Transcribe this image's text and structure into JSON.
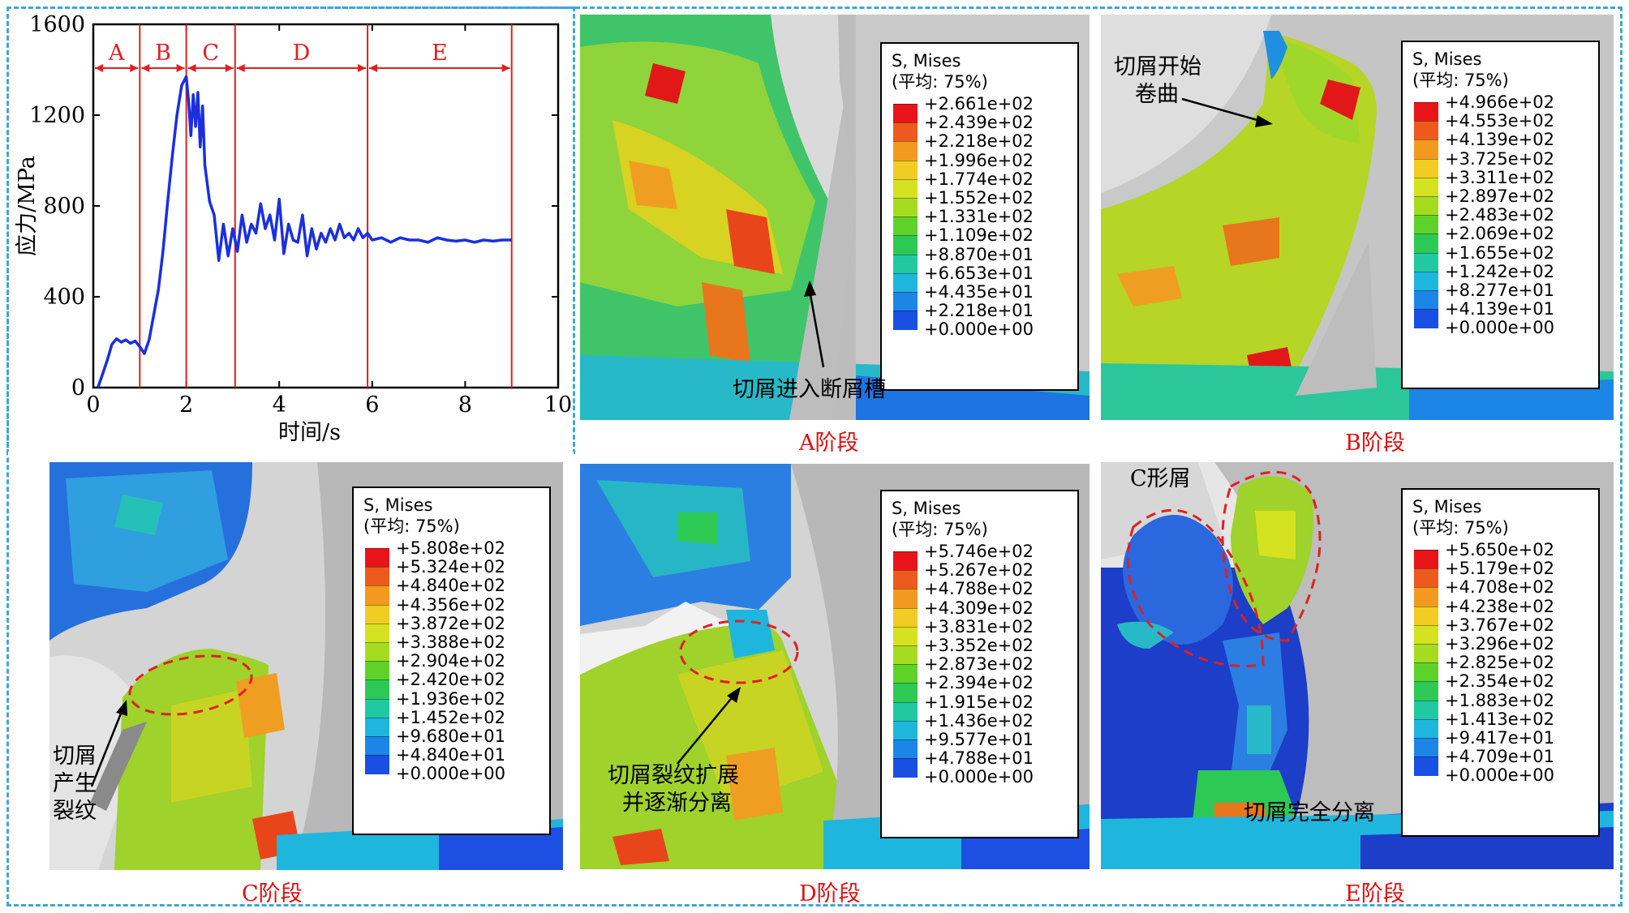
{
  "chart_data": {
    "type": "line",
    "xlabel": "时间/s",
    "ylabel": "应力/MPa",
    "xlim": [
      0,
      10
    ],
    "ylim": [
      0,
      1600
    ],
    "xticks": [
      "0",
      "2",
      "4",
      "6",
      "8",
      "10"
    ],
    "yticks": [
      "0",
      "400",
      "800",
      "1200",
      "1600"
    ],
    "line_color": "#1a2fe0",
    "stage_color": "#e02020",
    "stages": [
      {
        "label": "A",
        "start": 0,
        "end": 1.0
      },
      {
        "label": "B",
        "start": 1.0,
        "end": 2.0
      },
      {
        "label": "C",
        "start": 2.0,
        "end": 3.05
      },
      {
        "label": "D",
        "start": 3.05,
        "end": 5.9
      },
      {
        "label": "E",
        "start": 5.9,
        "end": 9.0
      }
    ],
    "x": [
      0.1,
      0.2,
      0.3,
      0.4,
      0.5,
      0.6,
      0.7,
      0.8,
      0.9,
      1.0,
      1.1,
      1.2,
      1.3,
      1.4,
      1.5,
      1.6,
      1.7,
      1.8,
      1.9,
      2.0,
      2.05,
      2.1,
      2.15,
      2.2,
      2.25,
      2.3,
      2.35,
      2.4,
      2.45,
      2.5,
      2.6,
      2.7,
      2.8,
      2.9,
      3.0,
      3.1,
      3.2,
      3.3,
      3.4,
      3.5,
      3.6,
      3.7,
      3.8,
      3.9,
      4.0,
      4.1,
      4.2,
      4.3,
      4.4,
      4.5,
      4.6,
      4.7,
      4.8,
      4.9,
      5.0,
      5.1,
      5.2,
      5.3,
      5.4,
      5.5,
      5.6,
      5.7,
      5.8,
      5.9,
      6.0,
      6.2,
      6.4,
      6.6,
      6.8,
      7.0,
      7.2,
      7.4,
      7.6,
      7.8,
      8.0,
      8.2,
      8.4,
      8.6,
      8.8,
      9.0
    ],
    "y": [
      0,
      60,
      120,
      190,
      215,
      200,
      210,
      195,
      205,
      180,
      150,
      210,
      320,
      430,
      600,
      820,
      1020,
      1200,
      1330,
      1370,
      1260,
      1110,
      1290,
      1150,
      1300,
      1060,
      1240,
      980,
      900,
      820,
      760,
      560,
      720,
      580,
      700,
      600,
      760,
      640,
      720,
      680,
      810,
      700,
      760,
      650,
      830,
      590,
      720,
      650,
      640,
      760,
      580,
      700,
      610,
      680,
      640,
      700,
      650,
      720,
      660,
      680,
      650,
      700,
      660,
      680,
      650,
      660,
      640,
      660,
      650,
      650,
      640,
      660,
      650,
      645,
      650,
      640,
      650,
      645,
      650,
      650
    ]
  },
  "panels": {
    "a": {
      "caption": "A阶段",
      "annotation": "切屑进入断屑槽",
      "legend_title1": "S, Mises",
      "legend_title2": "(平均: 75%)",
      "values": [
        "+2.661e+02",
        "+2.439e+02",
        "+2.218e+02",
        "+1.996e+02",
        "+1.774e+02",
        "+1.552e+02",
        "+1.331e+02",
        "+1.109e+02",
        "+8.870e+01",
        "+6.653e+01",
        "+4.435e+01",
        "+2.218e+01",
        "+0.000e+00"
      ]
    },
    "b": {
      "caption": "B阶段",
      "annotation_line1": "切屑开始",
      "annotation_line2": "卷曲",
      "legend_title1": "S, Mises",
      "legend_title2": "(平均: 75%)",
      "values": [
        "+4.966e+02",
        "+4.553e+02",
        "+4.139e+02",
        "+3.725e+02",
        "+3.311e+02",
        "+2.897e+02",
        "+2.483e+02",
        "+2.069e+02",
        "+1.655e+02",
        "+1.242e+02",
        "+8.277e+01",
        "+4.139e+01",
        "+0.000e+00"
      ]
    },
    "c": {
      "caption": "C阶段",
      "annotation_line1": "切屑",
      "annotation_line2": "产生",
      "annotation_line3": "裂纹",
      "legend_title1": "S, Mises",
      "legend_title2": "(平均: 75%)",
      "values": [
        "+5.808e+02",
        "+5.324e+02",
        "+4.840e+02",
        "+4.356e+02",
        "+3.872e+02",
        "+3.388e+02",
        "+2.904e+02",
        "+2.420e+02",
        "+1.936e+02",
        "+1.452e+02",
        "+9.680e+01",
        "+4.840e+01",
        "+0.000e+00"
      ]
    },
    "d": {
      "caption": "D阶段",
      "annotation_line1": "切屑裂纹扩展",
      "annotation_line2": "并逐渐分离",
      "legend_title1": "S, Mises",
      "legend_title2": "(平均: 75%)",
      "values": [
        "+5.746e+02",
        "+5.267e+02",
        "+4.788e+02",
        "+4.309e+02",
        "+3.831e+02",
        "+3.352e+02",
        "+2.873e+02",
        "+2.394e+02",
        "+1.915e+02",
        "+1.436e+02",
        "+9.577e+01",
        "+4.788e+01",
        "+0.000e+00"
      ]
    },
    "e": {
      "caption": "E阶段",
      "annotation_top": "C形屑",
      "annotation_bottom": "切屑完全分离",
      "legend_title1": "S, Mises",
      "legend_title2": "(平均: 75%)",
      "values": [
        "+5.650e+02",
        "+5.179e+02",
        "+4.708e+02",
        "+4.238e+02",
        "+3.767e+02",
        "+3.296e+02",
        "+2.825e+02",
        "+2.354e+02",
        "+1.883e+02",
        "+1.413e+02",
        "+9.417e+01",
        "+4.709e+01",
        "+0.000e+00"
      ]
    }
  },
  "legend_colors": [
    "#e8141a",
    "#ee5a1e",
    "#f29a20",
    "#f1cc22",
    "#d5e21f",
    "#a6dc20",
    "#5fd22a",
    "#2dc955",
    "#20c9a0",
    "#1fb6de",
    "#1c86e6",
    "#1a4fe4",
    "#1020d6"
  ],
  "colors": {
    "frame": "#3fa7d6",
    "caption": "#dd1111",
    "tool_gray": "#c9c9c9"
  }
}
